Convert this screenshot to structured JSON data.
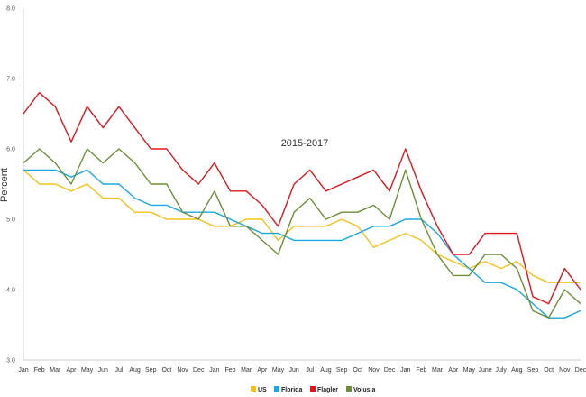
{
  "chart_data": {
    "type": "line",
    "title": "",
    "xlabel": "2015-2017",
    "ylabel": "Percent",
    "ylim": [
      3.0,
      8.0
    ],
    "yticks": [
      "3.0",
      "4.0",
      "5.0",
      "6.0",
      "7.0",
      "8.0"
    ],
    "categories": [
      "Jan",
      "Feb",
      "Mar",
      "Apr",
      "May",
      "Jun",
      "Jul",
      "Aug",
      "Sep",
      "Oct",
      "Nov",
      "Dec",
      "Jan",
      "Feb",
      "Mar",
      "Apr",
      "May",
      "Jun",
      "Jul",
      "Aug",
      "Sep",
      "Oct",
      "Nov",
      "Dec",
      "Jan",
      "Feb",
      "Mar",
      "Apr",
      "May",
      "June",
      "July",
      "Aug",
      "Sep",
      "Oct",
      "Nov",
      "Dec"
    ],
    "grid": false,
    "legend_position": "bottom-center",
    "series": [
      {
        "name": "US",
        "color": "#f2c21b",
        "values": [
          5.7,
          5.5,
          5.5,
          5.4,
          5.5,
          5.3,
          5.3,
          5.1,
          5.1,
          5.0,
          5.0,
          5.0,
          4.9,
          4.9,
          5.0,
          5.0,
          4.7,
          4.9,
          4.9,
          4.9,
          5.0,
          4.9,
          4.6,
          4.7,
          4.8,
          4.7,
          4.5,
          4.4,
          4.3,
          4.4,
          4.3,
          4.4,
          4.2,
          4.1,
          4.1,
          4.1
        ]
      },
      {
        "name": "Florida",
        "color": "#1aa7e0",
        "values": [
          5.7,
          5.7,
          5.7,
          5.6,
          5.7,
          5.5,
          5.5,
          5.3,
          5.2,
          5.2,
          5.1,
          5.1,
          5.1,
          5.0,
          4.9,
          4.8,
          4.8,
          4.7,
          4.7,
          4.7,
          4.7,
          4.8,
          4.9,
          4.9,
          5.0,
          5.0,
          4.8,
          4.5,
          4.3,
          4.1,
          4.1,
          4.0,
          3.8,
          3.6,
          3.6,
          3.7
        ]
      },
      {
        "name": "Flagler",
        "color": "#e0161e",
        "values": [
          6.5,
          6.8,
          6.6,
          6.1,
          6.6,
          6.3,
          6.6,
          6.3,
          6.0,
          6.0,
          5.7,
          5.5,
          5.8,
          5.4,
          5.4,
          5.2,
          4.9,
          5.5,
          5.7,
          5.4,
          5.5,
          5.6,
          5.7,
          5.4,
          6.0,
          5.4,
          4.9,
          4.5,
          4.5,
          4.8,
          4.8,
          4.8,
          3.9,
          3.8,
          4.3,
          4.0
        ]
      },
      {
        "name": "Volusia",
        "color": "#6b8e3a",
        "values": [
          5.8,
          6.0,
          5.8,
          5.5,
          6.0,
          5.8,
          6.0,
          5.8,
          5.5,
          5.5,
          5.1,
          5.0,
          5.4,
          4.9,
          4.9,
          4.7,
          4.5,
          5.1,
          5.3,
          5.0,
          5.1,
          5.1,
          5.2,
          5.0,
          5.7,
          5.0,
          4.5,
          4.2,
          4.2,
          4.5,
          4.5,
          4.3,
          3.7,
          3.6,
          4.0,
          3.8
        ]
      }
    ]
  }
}
